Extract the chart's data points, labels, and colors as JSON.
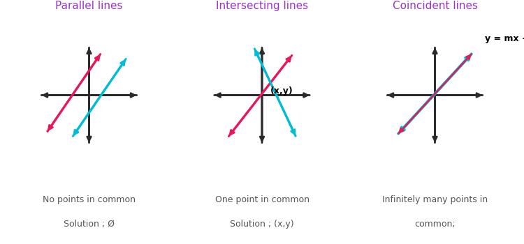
{
  "bg_color": "#ffffff",
  "title_color": "#9933cc",
  "axis_color": "#2a2a2a",
  "pink_color": "#e8185a",
  "cyan_color": "#00bcd4",
  "text_color": "#555555",
  "fig_width": 7.5,
  "fig_height": 3.5,
  "dpi": 100,
  "panels": [
    {
      "title": "Parallel lines",
      "desc1": "No points in common",
      "desc2": "Solution ; Ø",
      "type": "parallel"
    },
    {
      "title": "Intersecting lines",
      "desc1": "One point in common",
      "desc2": "Solution ; (x,y)",
      "type": "intersecting"
    },
    {
      "title": "Coincident lines",
      "desc1": "Infinitely many points in",
      "desc2": "common;",
      "desc3": "{(x,y) : y= mx + b}",
      "type": "coincident"
    }
  ]
}
